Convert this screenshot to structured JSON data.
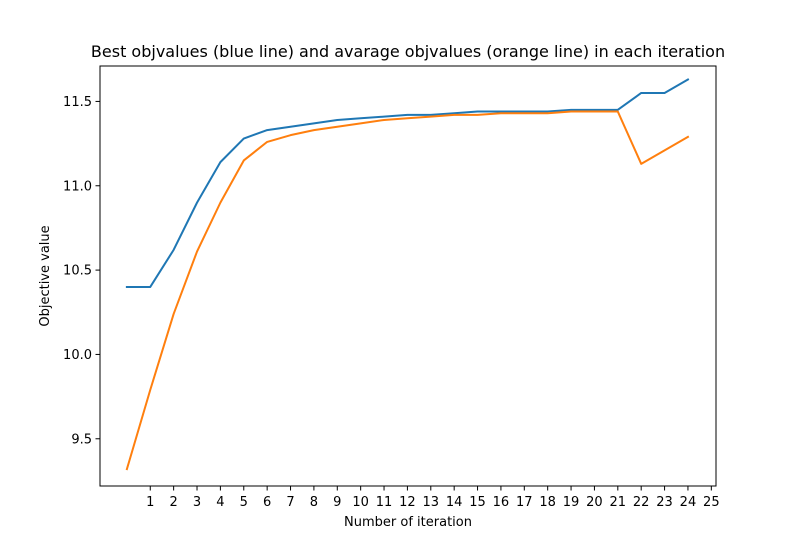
{
  "chart_data": {
    "type": "line",
    "title": "Best objvalues (blue line) and avarage objvalues (orange line) in each iteration",
    "xlabel": "Number of iteration",
    "ylabel": "Objective value",
    "x": [
      0,
      1,
      2,
      3,
      4,
      5,
      6,
      7,
      8,
      9,
      10,
      11,
      12,
      13,
      14,
      15,
      16,
      17,
      18,
      19,
      20,
      21,
      22,
      23,
      24
    ],
    "xticks": [
      1,
      2,
      3,
      4,
      5,
      6,
      7,
      8,
      9,
      10,
      11,
      12,
      13,
      14,
      15,
      16,
      17,
      18,
      19,
      20,
      21,
      22,
      23,
      24,
      25
    ],
    "yticks": [
      9.5,
      10.0,
      10.5,
      11.0,
      11.5
    ],
    "ytick_labels": [
      "9.5",
      "10.0",
      "10.5",
      "11.0",
      "11.5"
    ],
    "xlim": [
      -1.15,
      25.2
    ],
    "ylim": [
      9.22,
      11.71
    ],
    "grid": false,
    "series": [
      {
        "color": "#1f77b4",
        "values": [
          10.4,
          10.4,
          10.62,
          10.9,
          11.14,
          11.28,
          11.33,
          11.35,
          11.37,
          11.39,
          11.4,
          11.41,
          11.42,
          11.42,
          11.43,
          11.44,
          11.44,
          11.44,
          11.44,
          11.45,
          11.45,
          11.45,
          11.55,
          11.55,
          11.63
        ]
      },
      {
        "color": "#ff7f0e",
        "values": [
          9.32,
          9.79,
          10.24,
          10.61,
          10.9,
          11.15,
          11.26,
          11.3,
          11.33,
          11.35,
          11.37,
          11.39,
          11.4,
          11.41,
          11.42,
          11.42,
          11.43,
          11.43,
          11.43,
          11.44,
          11.44,
          11.44,
          11.13,
          11.21,
          11.29
        ]
      }
    ]
  }
}
